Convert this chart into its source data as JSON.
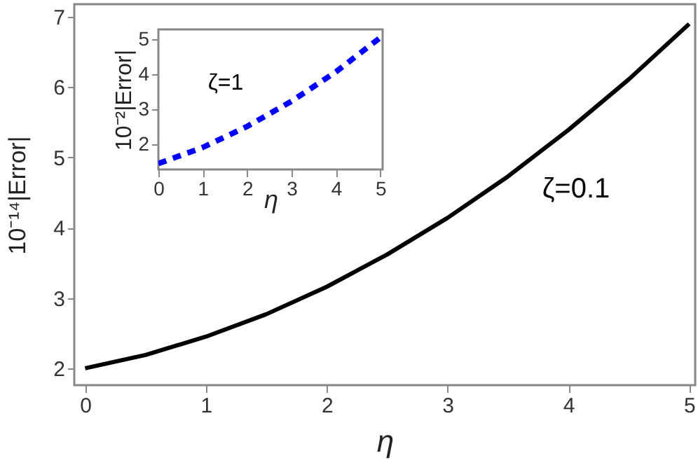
{
  "chart_data": [
    {
      "type": "line",
      "xlabel": "η",
      "ylabel": "10⁻¹⁴|Error|",
      "xlim": [
        -0.09,
        5.05
      ],
      "ylim": [
        1.76,
        7.18
      ],
      "xticks": [
        0,
        1,
        2,
        3,
        4,
        5
      ],
      "yticks": [
        2,
        3,
        4,
        5,
        6,
        7
      ],
      "line_style": "solid",
      "annotations": [
        "ζ=0.1"
      ],
      "series": [
        {
          "color": "#000000",
          "x": [
            0,
            0.5,
            1,
            1.5,
            2,
            2.5,
            3,
            3.5,
            4,
            4.5,
            5
          ],
          "values": [
            2.0,
            2.19,
            2.45,
            2.77,
            3.16,
            3.62,
            4.14,
            4.73,
            5.39,
            6.11,
            6.9
          ]
        }
      ]
    },
    {
      "type": "line",
      "xlabel": "η",
      "ylabel": "10⁻²|Error|",
      "xlim": [
        0,
        5.05
      ],
      "ylim": [
        1.28,
        5.28
      ],
      "xticks": [
        0,
        1,
        2,
        3,
        4,
        5
      ],
      "yticks": [
        2,
        3,
        4,
        5
      ],
      "line_style": "dashed",
      "annotations": [
        "ζ=1"
      ],
      "series": [
        {
          "color": "#0000ff",
          "x": [
            0,
            1,
            2,
            3,
            4,
            5
          ],
          "values": [
            1.45,
            1.91,
            2.51,
            3.23,
            4.07,
            5.05
          ]
        }
      ]
    }
  ]
}
